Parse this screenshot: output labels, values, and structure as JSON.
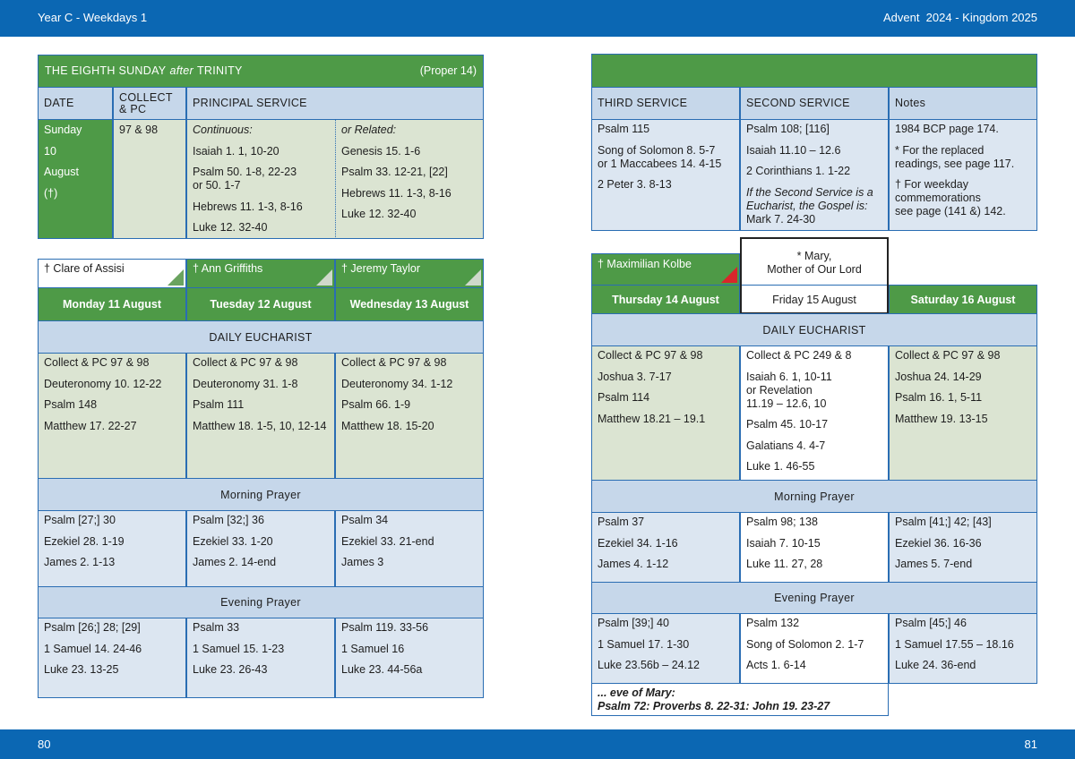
{
  "header": {
    "left": "Year C - Weekdays 1",
    "right": "Advent  2024 - Kingdom 2025"
  },
  "footer": {
    "left": "80",
    "right": "81"
  },
  "sunday": {
    "title": "THE EIGHTH SUNDAY",
    "title_italic": "after",
    "title_end": "TRINITY",
    "proper": "(Proper 14)",
    "headers": [
      "DATE",
      "COLLECT\n& PC",
      "PRINCIPAL SERVICE"
    ],
    "date": [
      "Sunday",
      "10",
      "August",
      "(†)"
    ],
    "collect": "97 & 98",
    "continuous": [
      "Continuous:",
      "Isaiah 1. 1, 10-20",
      "Psalm 50. 1-8, 22-23\nor 50. 1-7",
      "Hebrews 11. 1-3, 8-16",
      "Luke 12. 32-40"
    ],
    "related": [
      "or Related:",
      "Genesis 15. 1-6",
      "Psalm 33. 12-21, [22]",
      "Hebrews 11. 1-3, 8-16",
      "Luke 12. 32-40"
    ]
  },
  "other_services": {
    "headers": [
      "THIRD SERVICE",
      "SECOND SERVICE",
      "Notes"
    ],
    "columns": [
      [
        "Psalm 115",
        "Song of Solomon 8. 5-7\nor 1 Maccabees 14. 4-15",
        "2 Peter 3. 8-13"
      ],
      [
        "Psalm 108; [116]",
        "Isaiah 11.10 – 12.6",
        "2 Corinthians 1. 1-22",
        "If the Second Service is a\nEucharist, the Gospel is:",
        "Mark 7. 24-30"
      ],
      [
        "1984 BCP page 174.",
        "* For the replaced\nreadings, see page 117.",
        "† For weekday\ncommemorations\nsee page (141 &) 142."
      ]
    ]
  },
  "week_left": {
    "commemorations": [
      "† Clare of Assisi",
      "† Ann Griffiths",
      "† Jeremy Taylor"
    ],
    "days": [
      "Monday 11 August",
      "Tuesday 12 August",
      "Wednesday 13 August"
    ],
    "eucharist_label": "DAILY EUCHARIST",
    "eucharist": [
      [
        "Collect & PC 97 & 98",
        "Deuteronomy 10. 12-22",
        "Psalm 148",
        "Matthew 17. 22-27"
      ],
      [
        "Collect & PC 97 & 98",
        "Deuteronomy 31. 1-8",
        "Psalm 111",
        "Matthew 18. 1-5, 10, 12-14"
      ],
      [
        "Collect & PC 97 & 98",
        "Deuteronomy 34. 1-12",
        "Psalm 66. 1-9",
        "Matthew 18. 15-20"
      ]
    ],
    "morning_label": "Morning Prayer",
    "morning": [
      [
        "Psalm [27;] 30",
        "Ezekiel 28. 1-19",
        "James 2. 1-13"
      ],
      [
        "Psalm [32;] 36",
        "Ezekiel 33. 1-20",
        "James 2. 14-end"
      ],
      [
        "Psalm 34",
        "Ezekiel 33. 21-end",
        "James 3"
      ]
    ],
    "evening_label": "Evening Prayer",
    "evening": [
      [
        "Psalm [26;] 28; [29]",
        "1 Samuel 14. 24-46",
        "Luke 23. 13-25"
      ],
      [
        "Psalm 33",
        "1 Samuel 15. 1-23",
        "Luke 23. 26-43"
      ],
      [
        "Psalm 119. 33-56",
        "1 Samuel 16",
        "Luke 23. 44-56a"
      ]
    ]
  },
  "week_right": {
    "commemorations": [
      "† Maximilian Kolbe",
      "* Mary,\nMother of Our Lord"
    ],
    "days": [
      "Thursday 14 August",
      "Friday 15 August",
      "Saturday 16 August"
    ],
    "eucharist_label": "DAILY EUCHARIST",
    "eucharist": [
      [
        "Collect & PC 97 & 98",
        "Joshua 3. 7-17",
        "Psalm 114",
        "Matthew 18.21 – 19.1"
      ],
      [
        "Collect & PC 249 & 8",
        "Isaiah 6. 1, 10-11\nor Revelation\n11.19 – 12.6, 10",
        "Psalm 45. 10-17",
        "Galatians 4. 4-7",
        "Luke 1. 46-55"
      ],
      [
        "Collect & PC 97 & 98",
        "Joshua 24. 14-29",
        "Psalm 16. 1, 5-11",
        "Matthew 19. 13-15"
      ]
    ],
    "morning_label": "Morning Prayer",
    "morning": [
      [
        "Psalm 37",
        "Ezekiel 34. 1-16",
        "James 4. 1-12"
      ],
      [
        "Psalm 98; 138",
        "Isaiah 7. 10-15",
        "Luke 11. 27, 28"
      ],
      [
        "Psalm [41;] 42; [43]",
        "Ezekiel 36. 16-36",
        "James 5. 7-end"
      ]
    ],
    "evening_label": "Evening Prayer",
    "evening": [
      [
        "Psalm [39;] 40",
        "1 Samuel 17. 1-30",
        "Luke 23.56b – 24.12"
      ],
      [
        "Psalm 132",
        "Song of Solomon 2. 1-7",
        "Acts 1. 6-14"
      ],
      [
        "Psalm [45;] 46",
        "1 Samuel 17.55 – 18.16",
        "Luke 24. 36-end"
      ]
    ],
    "eve_note": [
      "... eve of Mary:",
      "Psalm 72:  Proverbs 8. 22-31:  John 19. 23-27"
    ]
  }
}
